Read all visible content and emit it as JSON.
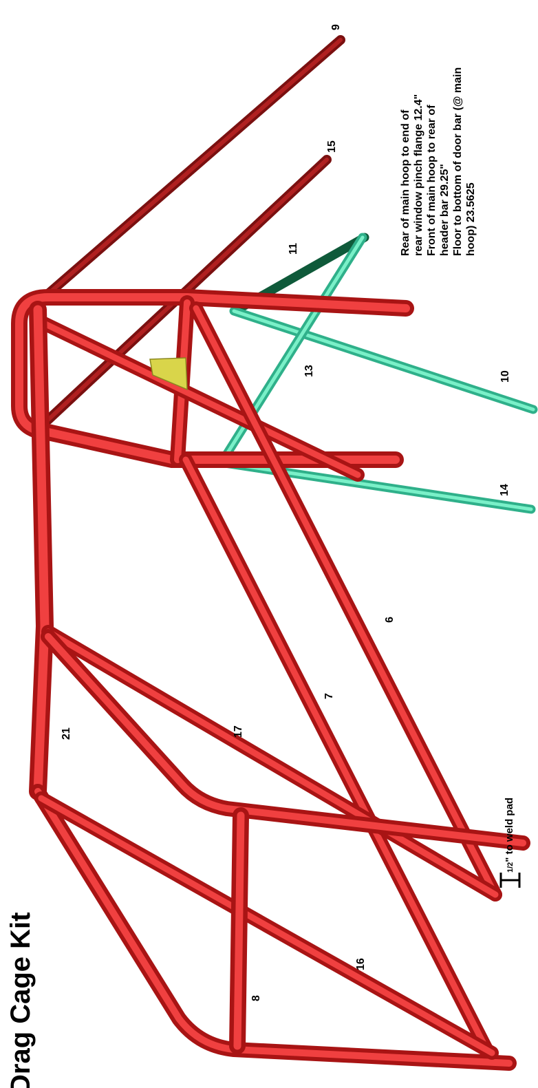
{
  "title": "Drag Cage Kit",
  "colors": {
    "tube_red": "#e02626",
    "tube_dark_red": "#8e1414",
    "tube_teal": "#5fe0b0",
    "tube_dark_green": "#0f5a3a",
    "gusset_yellow": "#d9d54a"
  },
  "part_labels": [
    "9",
    "15",
    "11",
    "13",
    "10",
    "14",
    "6",
    "7",
    "17",
    "21",
    "16",
    "8"
  ],
  "notes": {
    "line1": "Rear of main hoop to end of",
    "line2": "rear window pinch flange 12.4\"",
    "line3": "Front of main hoop to rear of",
    "line4": "header bar  29.25\"",
    "line5": "Floor to bottom of door bar (@ main",
    "line6": "hoop) 23.5625"
  },
  "weld_pad_label": "\" to weld pad",
  "weld_pad_fraction": "1/2"
}
